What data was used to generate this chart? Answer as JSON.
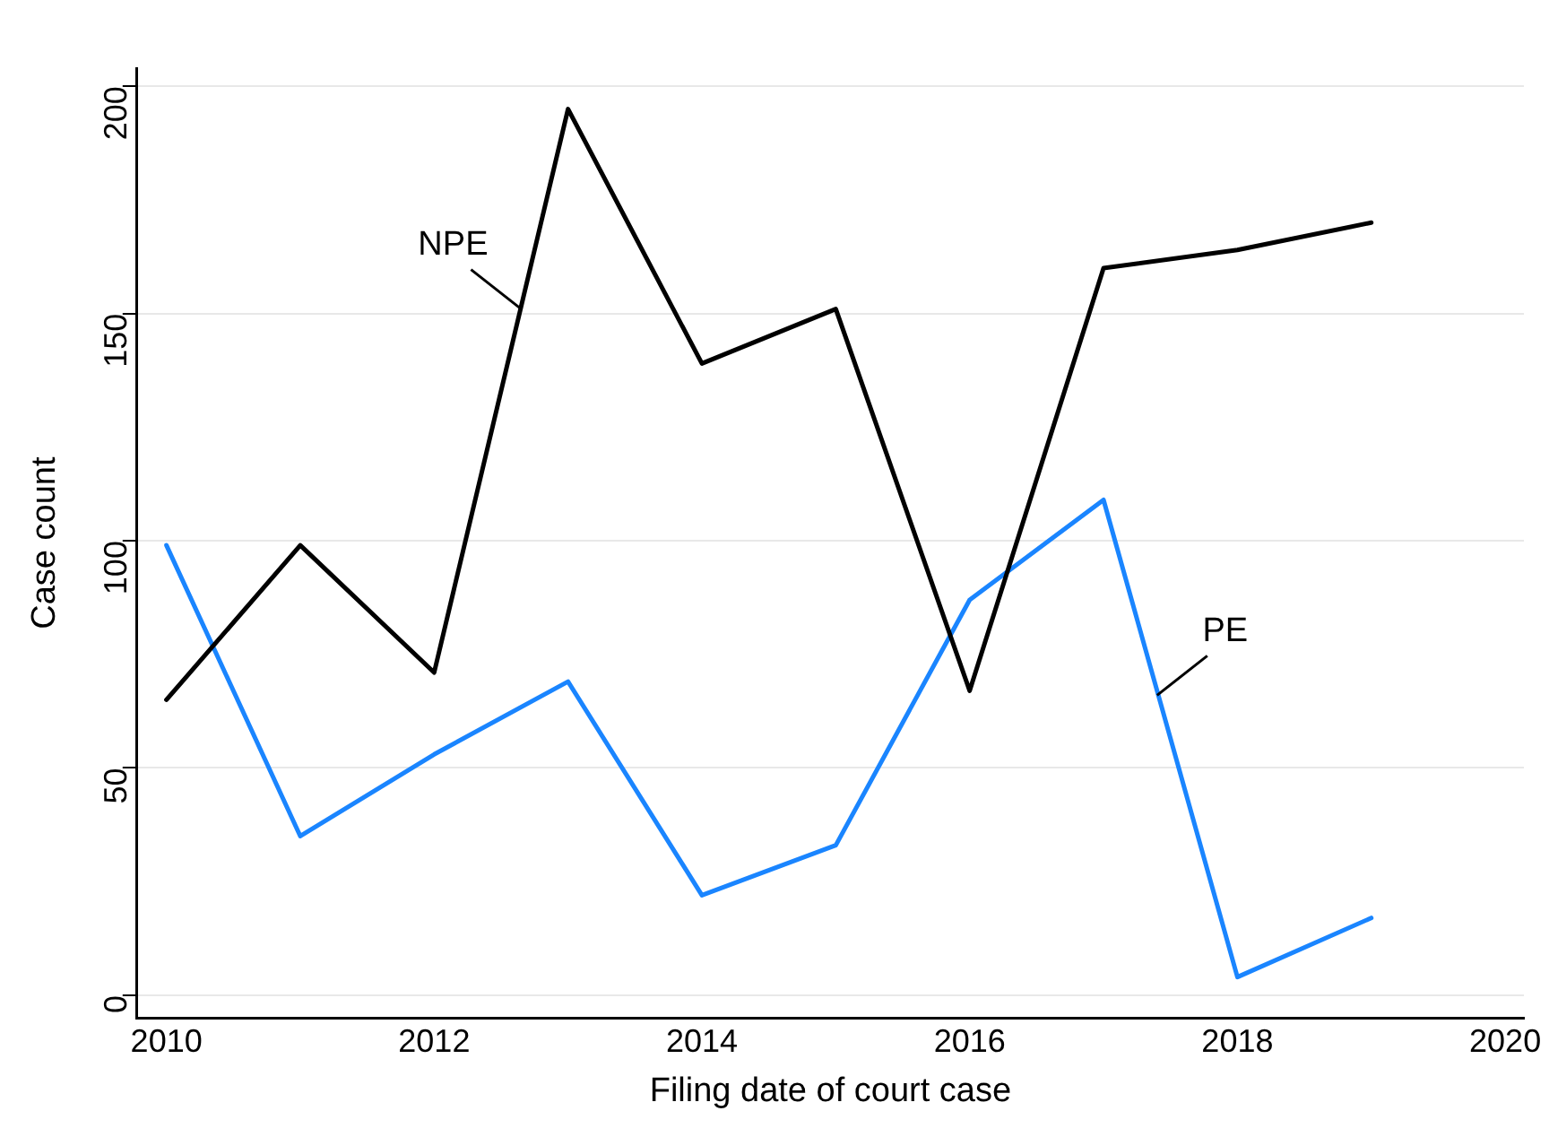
{
  "chart_data": {
    "type": "line",
    "xlabel": "Filing date of court case",
    "ylabel": "Case count",
    "x": [
      2010,
      2011,
      2012,
      2013,
      2014,
      2015,
      2016,
      2017,
      2018,
      2019
    ],
    "series": [
      {
        "color": "#000000",
        "values": [
          65,
          99,
          71,
          195,
          139,
          151,
          67,
          160,
          164,
          170
        ]
      },
      {
        "color": "#1a85ff",
        "values": [
          99,
          35,
          53,
          69,
          22,
          33,
          87,
          109,
          4,
          17
        ]
      }
    ],
    "xlim": [
      2009.78,
      2020.14
    ],
    "xticks": [
      2010,
      2012,
      2014,
      2016,
      2018,
      2020
    ],
    "ylim": [
      -5,
      204
    ],
    "yticks": [
      0,
      50,
      100,
      150,
      200
    ],
    "grid": "y",
    "legend": false,
    "marker": "none",
    "line_style": "solid",
    "annotations": [
      {
        "text": "NPE",
        "x": 2012.65,
        "y": 151
      },
      {
        "text": "PE",
        "x": 2017.4,
        "y": 66
      }
    ]
  }
}
